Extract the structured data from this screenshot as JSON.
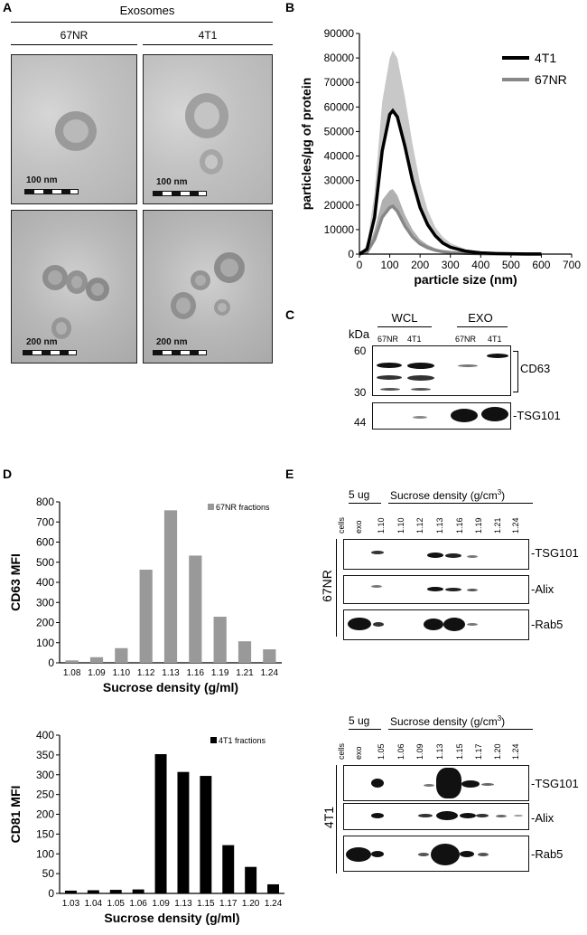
{
  "panels": {
    "A": {
      "letter": "A",
      "header": "Exosomes",
      "col1": "67NR",
      "col2": "4T1",
      "scale_top_1": "100 nm",
      "scale_top_2": "100 nm",
      "scale_bottom_1": "200 nm",
      "scale_bottom_2": "200 nm"
    },
    "B": {
      "letter": "B"
    },
    "C": {
      "letter": "C",
      "group1": "WCL",
      "group2": "EXO",
      "kda": "kDa",
      "lanes": [
        "67NR",
        "4T1",
        "67NR",
        "4T1"
      ],
      "mw_60": "60",
      "mw_30": "30",
      "mw_44": "44",
      "label_cd63": "CD63",
      "label_tsg101": "-TSG101"
    },
    "D": {
      "letter": "D"
    },
    "E": {
      "letter": "E",
      "top": {
        "load": "5 ug",
        "header": "Sucrose density (g/cm",
        "sup": "3",
        "close": ")",
        "lanes": [
          "cells",
          "exo",
          "1.10",
          "1.10",
          "1.12",
          "1.13",
          "1.16",
          "1.19",
          "1.21",
          "1.24"
        ],
        "row_label": "67NR",
        "blots": [
          "-TSG101",
          "-Alix",
          "-Rab5"
        ]
      },
      "bottom": {
        "load": "5 ug",
        "header": "Sucrose density (g/cm",
        "sup": "3",
        "close": ")",
        "lanes": [
          "cells",
          "exo",
          "1.05",
          "1.06",
          "1.09",
          "1.13",
          "1.15",
          "1.17",
          "1.20",
          "1.24"
        ],
        "row_label": "4T1",
        "blots": [
          "-TSG101",
          "-Alix",
          "-Rab5"
        ]
      }
    }
  },
  "chart_data": [
    {
      "type": "line",
      "title": "",
      "xlabel": "particle size (nm)",
      "ylabel": "particles/µg of protein",
      "xlim": [
        0,
        700
      ],
      "ylim": [
        0,
        90000
      ],
      "xticks": [
        0,
        100,
        200,
        300,
        400,
        500,
        600,
        700
      ],
      "yticks": [
        0,
        10000,
        20000,
        30000,
        40000,
        50000,
        60000,
        70000,
        80000,
        90000
      ],
      "legend_position": "top-right",
      "series": [
        {
          "name": "4T1",
          "color": "#000000",
          "x": [
            0,
            25,
            50,
            75,
            100,
            110,
            125,
            150,
            175,
            200,
            225,
            250,
            275,
            300,
            350,
            400,
            450,
            500,
            550,
            600
          ],
          "y": [
            0,
            2000,
            15000,
            42000,
            57000,
            58500,
            56000,
            44000,
            30000,
            19000,
            12000,
            7500,
            4500,
            2800,
            1200,
            500,
            250,
            120,
            60,
            30
          ],
          "error_upper": [
            0,
            3500,
            25000,
            62000,
            80000,
            83000,
            80000,
            64000,
            45000,
            29000,
            18000,
            11000,
            7000,
            4500,
            2000,
            900,
            450,
            200,
            100,
            50
          ]
        },
        {
          "name": "67NR",
          "color": "#888888",
          "x": [
            0,
            25,
            50,
            75,
            100,
            110,
            125,
            150,
            175,
            200,
            225,
            250,
            275,
            300,
            350,
            400,
            450,
            500,
            550,
            600
          ],
          "y": [
            0,
            800,
            6000,
            15000,
            19000,
            19500,
            17500,
            11500,
            7000,
            4200,
            2600,
            1600,
            1000,
            650,
            300,
            140,
            70,
            40,
            20,
            10
          ],
          "error_upper": [
            0,
            1500,
            10000,
            22000,
            26000,
            26500,
            24000,
            16000,
            10000,
            6000,
            3800,
            2400,
            1500,
            1000,
            450,
            220,
            110,
            60,
            30,
            15
          ]
        }
      ]
    },
    {
      "type": "bar",
      "title": "",
      "legend": "67NR fractions",
      "legend_position": "top-right",
      "color": "#999999",
      "xlabel": "Sucrose density (g/ml)",
      "ylabel": "CD63 MFI",
      "ylim": [
        0,
        800
      ],
      "yticks": [
        0,
        100,
        200,
        300,
        400,
        500,
        600,
        700,
        800
      ],
      "categories": [
        "1.08",
        "1.09",
        "1.10",
        "1.12",
        "1.13",
        "1.16",
        "1.19",
        "1.21",
        "1.24"
      ],
      "values": [
        12,
        28,
        73,
        463,
        758,
        533,
        229,
        107,
        67
      ]
    },
    {
      "type": "bar",
      "title": "",
      "legend": "4T1 fractions",
      "legend_position": "top-right",
      "color": "#000000",
      "xlabel": "Sucrose density (g/ml)",
      "ylabel": "CD81 MFI",
      "ylim": [
        0,
        400
      ],
      "yticks": [
        0,
        50,
        100,
        150,
        200,
        250,
        300,
        350,
        400
      ],
      "categories": [
        "1.03",
        "1.04",
        "1.05",
        "1.06",
        "1.09",
        "1.13",
        "1.15",
        "1.17",
        "1.20",
        "1.24"
      ],
      "values": [
        7,
        8,
        9,
        10,
        352,
        307,
        297,
        122,
        67,
        23
      ]
    }
  ]
}
